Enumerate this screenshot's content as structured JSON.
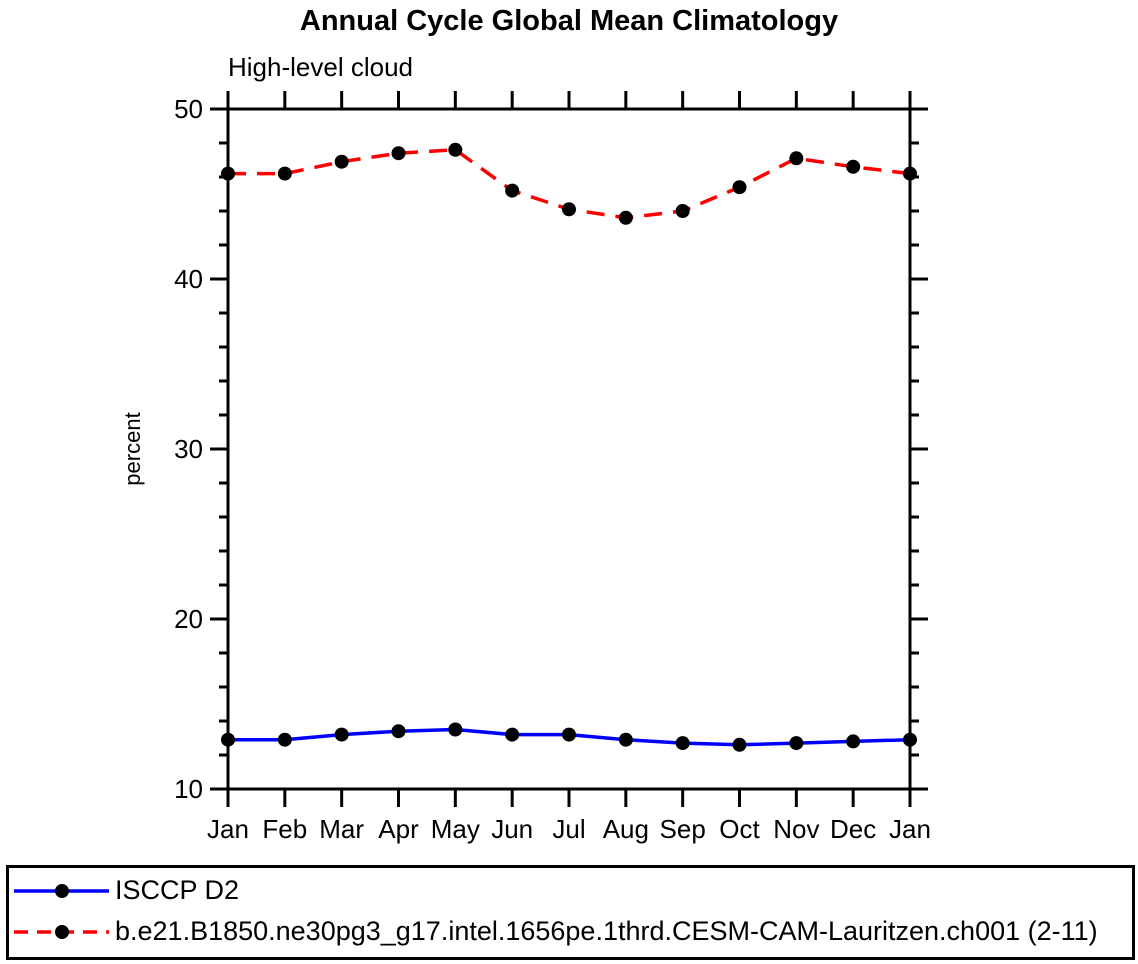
{
  "title": "Annual Cycle Global Mean Climatology",
  "subtitle": "High-level cloud",
  "colors": {
    "obs_line": "#0000ff",
    "model_line": "#ff0000",
    "marker": "#000000",
    "axis": "#000000",
    "background": "#ffffff"
  },
  "legend": {
    "items": [
      {
        "label": "ISCCP D2",
        "color": "#0000ff",
        "style": "solid"
      },
      {
        "label": "b.e21.B1850.ne30pg3_g17.intel.1656pe.1thrd.CESM-CAM-Lauritzen.ch001 (2-11)",
        "color": "#ff0000",
        "style": "dashed"
      }
    ]
  },
  "chart_data": {
    "type": "line",
    "title": "Annual Cycle Global Mean Climatology",
    "subtitle": "High-level cloud",
    "xlabel": "",
    "ylabel": "percent",
    "ylim": [
      10,
      50
    ],
    "yticks_major": [
      10,
      20,
      30,
      40,
      50
    ],
    "ytick_minor_step": 2,
    "grid": false,
    "legend_position": "bottom",
    "categories": [
      "Jan",
      "Feb",
      "Mar",
      "Apr",
      "May",
      "Jun",
      "Jul",
      "Aug",
      "Sep",
      "Oct",
      "Nov",
      "Dec",
      "Jan"
    ],
    "series": [
      {
        "name": "ISCCP D2",
        "color": "#0000ff",
        "dash": "solid",
        "marker": "filled-circle",
        "values": [
          12.9,
          12.9,
          13.2,
          13.4,
          13.5,
          13.2,
          13.2,
          12.9,
          12.7,
          12.6,
          12.7,
          12.8,
          12.9
        ]
      },
      {
        "name": "b.e21.B1850.ne30pg3_g17.intel.1656pe.1thrd.CESM-CAM-Lauritzen.ch001 (2-11)",
        "color": "#ff0000",
        "dash": "dashed",
        "marker": "filled-circle",
        "values": [
          46.2,
          46.2,
          46.9,
          47.4,
          47.6,
          45.2,
          44.1,
          43.6,
          44.0,
          45.4,
          47.1,
          46.6,
          46.2
        ]
      }
    ]
  }
}
